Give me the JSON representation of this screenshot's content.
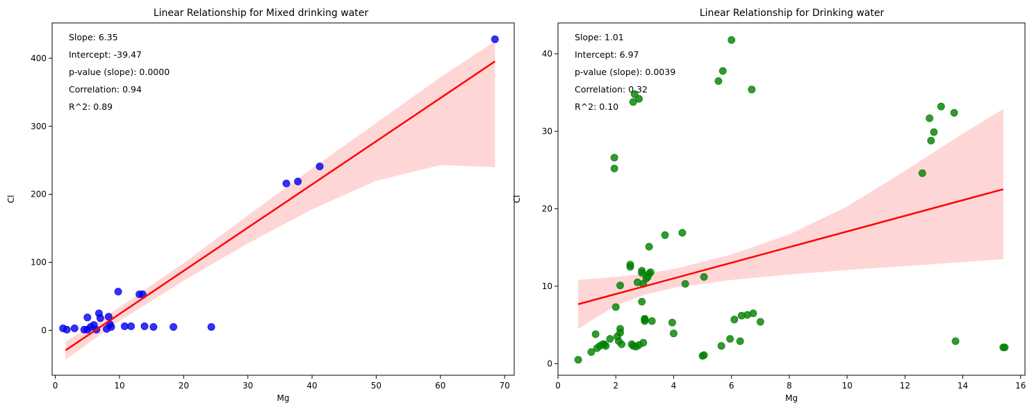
{
  "chart_data": [
    {
      "type": "scatter",
      "title": "Linear Relationship for Mixed drinking water",
      "xlabel": "Mg",
      "ylabel": "Cl",
      "xlim": [
        -0.5,
        71.5
      ],
      "ylim": [
        -66,
        452
      ],
      "xticks": [
        0,
        10,
        20,
        30,
        40,
        50,
        60,
        70
      ],
      "yticks": [
        0,
        100,
        200,
        300,
        400
      ],
      "point_color": "#0000ee",
      "line_color": "#ff0000",
      "band_color": "#ffd6d6",
      "annotations": [
        "Slope: 6.35",
        "Intercept: -39.47",
        "p-value (slope): 0.0000",
        "Correlation: 0.94",
        "R^2: 0.89"
      ],
      "regression": {
        "slope": 6.35,
        "intercept": -39.47,
        "x_range": [
          1.6,
          68.5
        ]
      },
      "band": {
        "x": [
          1.6,
          10,
          20,
          30,
          40,
          50,
          60,
          68.5
        ],
        "lower": [
          -43,
          14,
          73,
          128,
          178,
          220,
          243,
          240
        ],
        "upper": [
          -17,
          34,
          99,
          169,
          238,
          305,
          372,
          425
        ]
      },
      "x": [
        1.2,
        1.8,
        3.0,
        4.5,
        5.0,
        5.0,
        5.5,
        6.0,
        6.4,
        6.8,
        7.0,
        8.0,
        8.3,
        8.5,
        8.7,
        9.8,
        10.8,
        11.8,
        13.1,
        13.6,
        13.9,
        15.3,
        18.4,
        24.3,
        36.0,
        37.8,
        41.2,
        68.5
      ],
      "y": [
        3,
        1,
        3,
        1,
        1,
        19,
        5,
        8,
        1,
        25,
        18,
        2,
        20,
        9,
        5,
        57,
        6,
        6,
        53,
        53,
        6,
        5,
        5,
        5,
        216,
        219,
        241,
        428
      ]
    },
    {
      "type": "scatter",
      "title": "Linear Relationship for Drinking water",
      "xlabel": "Mg",
      "ylabel": "Cl",
      "xlim": [
        0.0,
        16.15
      ],
      "ylim": [
        -1.5,
        44
      ],
      "xticks": [
        0,
        2,
        4,
        6,
        8,
        10,
        12,
        14,
        16
      ],
      "yticks": [
        0,
        10,
        20,
        30,
        40
      ],
      "point_color": "#008000",
      "line_color": "#ff0000",
      "band_color": "#ffd6d6",
      "annotations": [
        "Slope: 1.01",
        "Intercept: 6.97",
        "p-value (slope): 0.0039",
        "Correlation: 0.32",
        "R^2: 0.10"
      ],
      "regression": {
        "slope": 1.01,
        "intercept": 6.97,
        "x_range": [
          0.7,
          15.4
        ]
      },
      "band": {
        "x": [
          0.7,
          2,
          3,
          4,
          6,
          8,
          10,
          12,
          14,
          15.4
        ],
        "lower": [
          4.5,
          7.5,
          8.9,
          9.8,
          10.8,
          11.5,
          12.1,
          12.6,
          13.1,
          13.5
        ],
        "upper": [
          10.8,
          11.2,
          11.6,
          12.2,
          14.1,
          16.7,
          20.3,
          24.9,
          29.7,
          32.9
        ]
      },
      "x": [
        0.7,
        1.15,
        1.3,
        1.35,
        1.45,
        1.55,
        1.6,
        1.65,
        1.8,
        1.95,
        1.95,
        2.0,
        2.05,
        2.1,
        2.15,
        2.15,
        2.15,
        2.2,
        2.5,
        2.5,
        2.55,
        2.6,
        2.6,
        2.65,
        2.7,
        2.75,
        2.8,
        2.8,
        2.9,
        2.9,
        2.9,
        2.95,
        2.95,
        3.0,
        3.0,
        3.0,
        3.05,
        3.1,
        3.15,
        3.15,
        3.2,
        3.25,
        3.7,
        3.95,
        4.0,
        4.3,
        4.4,
        5.0,
        5.05,
        5.05,
        5.55,
        5.65,
        5.7,
        5.95,
        6.0,
        6.1,
        6.3,
        6.35,
        6.55,
        6.7,
        6.75,
        7.0,
        12.6,
        12.85,
        12.9,
        13.0,
        13.25,
        13.7,
        13.75,
        15.4,
        15.45
      ],
      "y": [
        0.5,
        1.5,
        3.8,
        2.0,
        2.3,
        2.5,
        2.5,
        2.3,
        3.2,
        26.6,
        25.2,
        7.3,
        3.5,
        2.9,
        4.5,
        4.0,
        10.1,
        2.5,
        12.5,
        12.8,
        2.5,
        2.3,
        33.8,
        34.8,
        2.2,
        10.5,
        2.4,
        34.2,
        8.0,
        12.0,
        11.7,
        2.7,
        10.3,
        5.8,
        5.5,
        5.7,
        11.0,
        11.2,
        11.6,
        15.1,
        11.8,
        5.5,
        16.6,
        5.3,
        3.9,
        16.9,
        10.3,
        1.0,
        11.2,
        1.1,
        36.5,
        2.3,
        37.8,
        3.2,
        41.8,
        5.7,
        2.9,
        6.2,
        6.3,
        35.4,
        6.5,
        5.4,
        24.6,
        31.7,
        28.8,
        29.9,
        33.2,
        32.4,
        2.9,
        2.1,
        2.1
      ]
    }
  ]
}
